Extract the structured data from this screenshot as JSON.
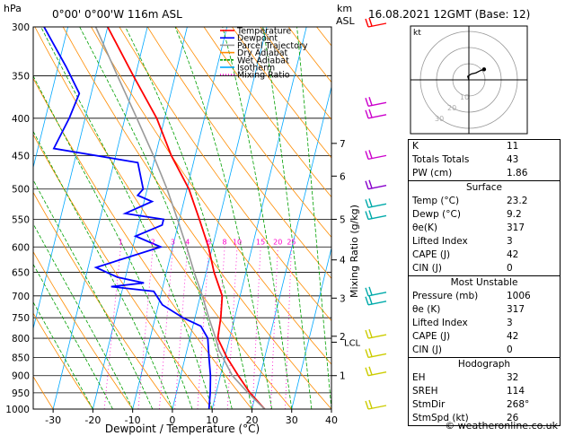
{
  "header": {
    "pressure_unit": "hPa",
    "location": "0°00' 0°00'W 116m ASL",
    "km_unit_line1": "km",
    "km_unit_line2": "ASL",
    "datetime": "16.08.2021 12GMT (Base: 12)"
  },
  "chart_data": {
    "type": "skew-t",
    "xlabel": "Dewpoint / Temperature (°C)",
    "right_axis_label": "Mixing Ratio (g/kg)",
    "x_ticks": [
      -30,
      -20,
      -10,
      0,
      10,
      20,
      30,
      40
    ],
    "x_range": [
      -35,
      40
    ],
    "pressure_levels": [
      300,
      350,
      400,
      450,
      500,
      550,
      600,
      650,
      700,
      750,
      800,
      850,
      900,
      950,
      1000
    ],
    "pressure_range": [
      300,
      1000
    ],
    "km_ticks": [
      {
        "label": "7",
        "p": 433
      },
      {
        "label": "6",
        "p": 480
      },
      {
        "label": "5",
        "p": 550
      },
      {
        "label": "4",
        "p": 625
      },
      {
        "label": "3",
        "p": 705
      },
      {
        "label": "2",
        "p": 795
      },
      {
        "label": "1",
        "p": 900
      }
    ],
    "lcl_label": "LCL",
    "lcl_p": 810,
    "mixing_ratio_labels": [
      "1",
      "2",
      "3",
      "4",
      "6",
      "8",
      "10",
      "15",
      "20",
      "25"
    ],
    "mixing_ratio_values": [
      1,
      2,
      3,
      4,
      6,
      8,
      10,
      15,
      20,
      25
    ],
    "mixing_ratio_label_p": 600,
    "legend": [
      {
        "name": "Temperature",
        "color": "#ff0000"
      },
      {
        "name": "Dewpoint",
        "color": "#0000ff"
      },
      {
        "name": "Parcel Trajectory",
        "color": "#999999"
      },
      {
        "name": "Dry Adiabat",
        "color": "#ff8c00"
      },
      {
        "name": "Wet Adiabat",
        "color": "#00a000"
      },
      {
        "name": "Isotherm",
        "color": "#00a8ff"
      },
      {
        "name": "Mixing Ratio",
        "color": "#ff00cc"
      }
    ],
    "series": [
      {
        "name": "Temperature",
        "color": "#ff0000",
        "points": [
          [
            1000,
            23.2
          ],
          [
            950,
            18.5
          ],
          [
            900,
            14.5
          ],
          [
            850,
            10.5
          ],
          [
            800,
            7.0
          ],
          [
            750,
            6.5
          ],
          [
            700,
            5.5
          ],
          [
            650,
            2.0
          ],
          [
            600,
            -1.0
          ],
          [
            550,
            -5.0
          ],
          [
            500,
            -9.5
          ],
          [
            450,
            -16.0
          ],
          [
            400,
            -22.0
          ],
          [
            350,
            -30.5
          ],
          [
            300,
            -40.0
          ]
        ]
      },
      {
        "name": "Dewpoint",
        "color": "#0000ff",
        "points": [
          [
            1000,
            9.2
          ],
          [
            950,
            8.5
          ],
          [
            900,
            7.5
          ],
          [
            850,
            6.0
          ],
          [
            800,
            4.5
          ],
          [
            770,
            2.0
          ],
          [
            750,
            -3.0
          ],
          [
            720,
            -9.0
          ],
          [
            690,
            -12.0
          ],
          [
            680,
            -23.0
          ],
          [
            672,
            -15.0
          ],
          [
            660,
            -22.0
          ],
          [
            640,
            -28.0
          ],
          [
            600,
            -13.0
          ],
          [
            580,
            -20.0
          ],
          [
            560,
            -14.0
          ],
          [
            550,
            -14.0
          ],
          [
            540,
            -24.0
          ],
          [
            520,
            -18.0
          ],
          [
            510,
            -22.0
          ],
          [
            500,
            -21.0
          ],
          [
            460,
            -24.0
          ],
          [
            440,
            -46.0
          ],
          [
            400,
            -44.0
          ],
          [
            370,
            -43.0
          ],
          [
            340,
            -48.0
          ],
          [
            300,
            -56.0
          ]
        ]
      },
      {
        "name": "Parcel Trajectory",
        "color": "#999999",
        "points": [
          [
            1000,
            23.2
          ],
          [
            950,
            18.0
          ],
          [
            900,
            13.0
          ],
          [
            830,
            8.0
          ],
          [
            800,
            6.5
          ],
          [
            750,
            3.5
          ],
          [
            700,
            0.5
          ],
          [
            650,
            -3.0
          ],
          [
            600,
            -6.5
          ],
          [
            550,
            -10.5
          ],
          [
            500,
            -15.0
          ],
          [
            450,
            -20.5
          ],
          [
            400,
            -27.0
          ],
          [
            350,
            -34.5
          ],
          [
            300,
            -43.0
          ]
        ]
      }
    ],
    "wind_barbs": [
      {
        "p": 300,
        "color": "#ff0000"
      },
      {
        "p": 385,
        "color": "#cc00cc"
      },
      {
        "p": 400,
        "color": "#cc00cc"
      },
      {
        "p": 455,
        "color": "#cc00cc"
      },
      {
        "p": 500,
        "color": "#8800cc"
      },
      {
        "p": 530,
        "color": "#00aaaa"
      },
      {
        "p": 550,
        "color": "#00aaaa"
      },
      {
        "p": 700,
        "color": "#00aaaa"
      },
      {
        "p": 720,
        "color": "#00aaaa"
      },
      {
        "p": 800,
        "color": "#cccc00"
      },
      {
        "p": 850,
        "color": "#cccc00"
      },
      {
        "p": 900,
        "color": "#cccc00"
      },
      {
        "p": 1000,
        "color": "#cccc00"
      }
    ],
    "hodograph": {
      "unit": "kt",
      "ring_labels": [
        "10",
        "20",
        "30"
      ],
      "trace": [
        [
          0,
          0
        ],
        [
          -1,
          3
        ],
        [
          2,
          5
        ],
        [
          6,
          6
        ],
        [
          10,
          8
        ],
        [
          13,
          9
        ]
      ]
    }
  },
  "indices": {
    "top": [
      {
        "label": "K",
        "value": "11"
      },
      {
        "label": "Totals Totals",
        "value": "43"
      },
      {
        "label": "PW (cm)",
        "value": "1.86"
      }
    ],
    "surface": {
      "title": "Surface",
      "rows": [
        {
          "label": "Temp (°C)",
          "value": "23.2"
        },
        {
          "label": "Dewp (°C)",
          "value": "9.2"
        },
        {
          "label": "θe(K)",
          "value": "317"
        },
        {
          "label": "Lifted Index",
          "value": "3"
        },
        {
          "label": "CAPE (J)",
          "value": "42"
        },
        {
          "label": "CIN (J)",
          "value": "0"
        }
      ]
    },
    "unstable": {
      "title": "Most Unstable",
      "rows": [
        {
          "label": "Pressure (mb)",
          "value": "1006"
        },
        {
          "label": "θe (K)",
          "value": "317"
        },
        {
          "label": "Lifted Index",
          "value": "3"
        },
        {
          "label": "CAPE (J)",
          "value": "42"
        },
        {
          "label": "CIN (J)",
          "value": "0"
        }
      ]
    },
    "hodograph": {
      "title": "Hodograph",
      "rows": [
        {
          "label": "EH",
          "value": "32"
        },
        {
          "label": "SREH",
          "value": "114"
        },
        {
          "label": "StmDir",
          "value": "268°"
        },
        {
          "label": "StmSpd (kt)",
          "value": "26"
        }
      ]
    }
  },
  "footer": {
    "credit": "© weatheronline.co.uk"
  }
}
